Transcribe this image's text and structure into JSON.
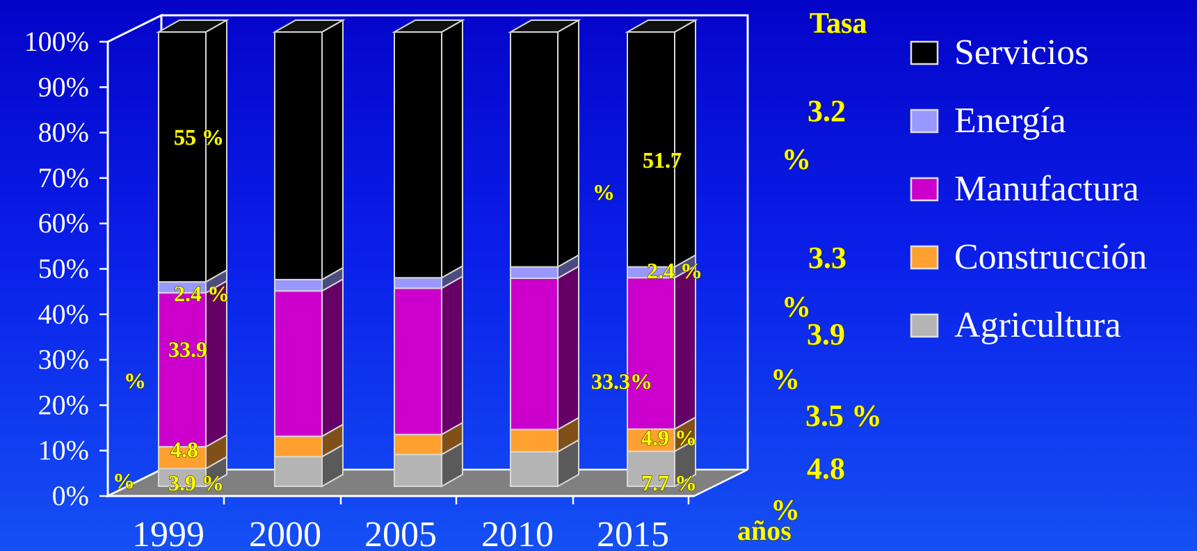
{
  "chart_data": {
    "type": "bar",
    "stacked": true,
    "percent_stacked": true,
    "three_d": true,
    "categories": [
      "1999",
      "2000",
      "2005",
      "2010",
      "2015"
    ],
    "xlabel": "años",
    "ylabel": "",
    "ylim": [
      0,
      100
    ],
    "y_ticks": [
      "0%",
      "10%",
      "20%",
      "30%",
      "40%",
      "50%",
      "60%",
      "70%",
      "80%",
      "90%",
      "100%"
    ],
    "legend_position": "right",
    "series": [
      {
        "name": "Agricultura",
        "color": "#b4b4b4",
        "values": [
          3.9,
          6.5,
          7.0,
          7.6,
          7.7
        ]
      },
      {
        "name": "Construcción",
        "color": "#ffa030",
        "values": [
          4.8,
          4.5,
          4.4,
          4.9,
          4.9
        ]
      },
      {
        "name": "Manufactura",
        "color": "#cc00cc",
        "values": [
          33.9,
          32.0,
          32.2,
          33.3,
          33.3
        ]
      },
      {
        "name": "Energía",
        "color": "#9898ff",
        "values": [
          2.4,
          2.5,
          2.3,
          2.5,
          2.4
        ]
      },
      {
        "name": "Servicios",
        "color": "#000000",
        "values": [
          55.0,
          54.5,
          54.1,
          51.7,
          51.7
        ]
      }
    ],
    "legend_order": [
      "Servicios",
      "Energía",
      "Manufactura",
      "Construcción",
      "Agricultura"
    ],
    "annotations": [
      {
        "text": "55 %",
        "size": 32
      },
      {
        "text": "2.4 %",
        "size": 32
      },
      {
        "text": "33.9",
        "size": 32
      },
      {
        "text": "%",
        "size": 32
      },
      {
        "text": "4.8",
        "size": 32
      },
      {
        "text": "%",
        "size": 32
      },
      {
        "text": "3.9 %",
        "size": 32
      },
      {
        "text": "%",
        "size": 32
      },
      {
        "text": "33.3%",
        "size": 32
      },
      {
        "text": "51.7",
        "size": 32
      },
      {
        "text": "2.4 %",
        "size": 32
      },
      {
        "text": "4.9 %",
        "size": 32
      },
      {
        "text": "7.7 %",
        "size": 32
      }
    ],
    "rate_panel": {
      "title": "Tasa",
      "items": [
        "3.2",
        "%",
        "3.3",
        "%",
        "3.9",
        "%",
        "3.5 %",
        "4.8",
        "%"
      ]
    }
  }
}
